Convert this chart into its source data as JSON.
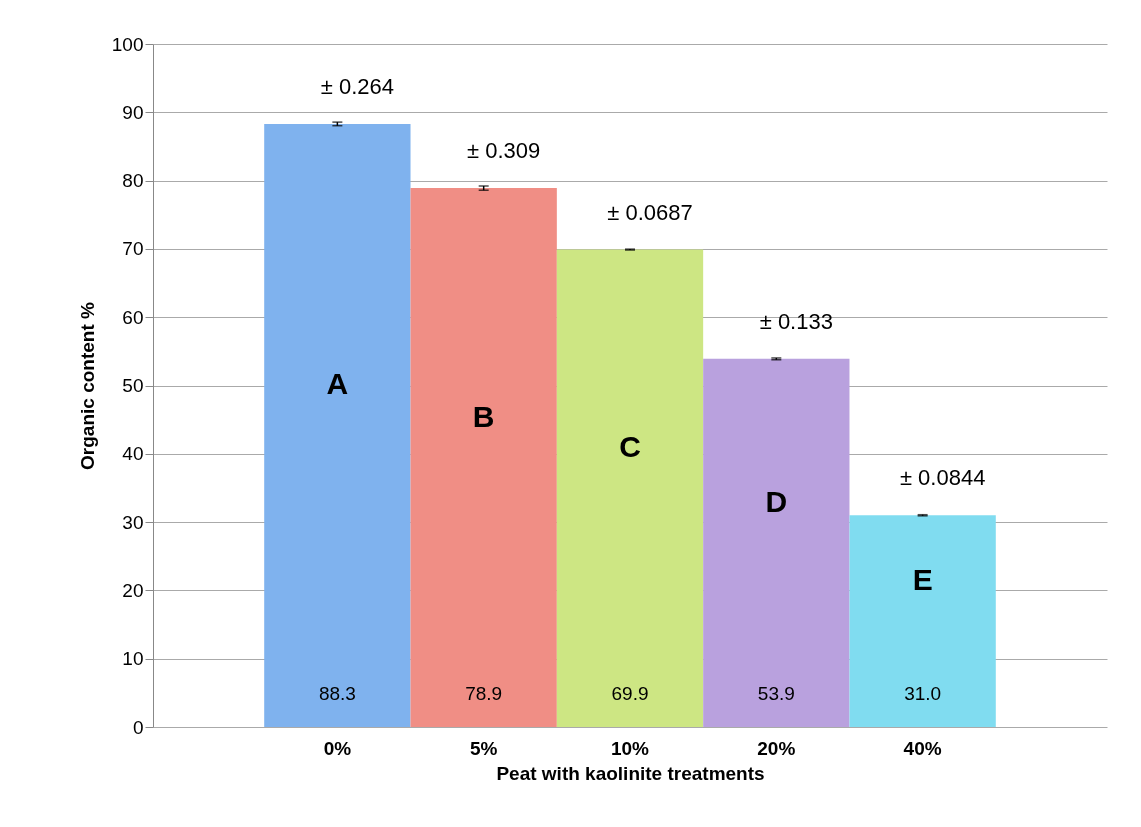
{
  "chart_data": {
    "type": "bar",
    "xlabel": "Peat with kaolinite treatments",
    "ylabel": "Organic content %",
    "categories": [
      "0%",
      "5%",
      "10%",
      "20%",
      "40%"
    ],
    "values": [
      88.3,
      78.9,
      69.9,
      53.9,
      31.0
    ],
    "errors": [
      0.264,
      0.309,
      0.0687,
      0.133,
      0.0844
    ],
    "colors": [
      "#7fb2ee",
      "#f08e85",
      "#cde683",
      "#b9a1de",
      "#80dcf0"
    ],
    "value_labels": [
      "88.3",
      "78.9",
      "69.9",
      "53.9",
      "31.0"
    ],
    "ylim": [
      0,
      100
    ],
    "yticks": [
      0,
      10,
      20,
      30,
      40,
      50,
      60,
      70,
      80,
      90,
      100
    ],
    "grid": "y",
    "legend": false,
    "annotations": [
      "A",
      "B",
      "C",
      "D",
      "E",
      "± 0.264",
      "± 0.309",
      "± 0.0687",
      "± 0.133",
      "± 0.0844"
    ]
  }
}
